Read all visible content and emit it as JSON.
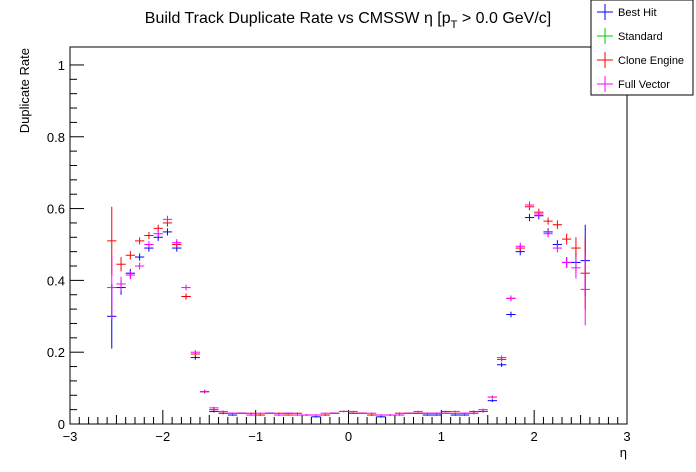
{
  "chart_data": {
    "type": "scatter",
    "title": "Build Track Duplicate Rate vs CMSSW η [p_T > 0.0 GeV/c]",
    "title_parts": {
      "main": "Build Track Duplicate Rate vs CMSSW η [p",
      "sub": "T",
      "tail": " > 0.0 GeV/c]"
    },
    "xlabel": "η",
    "ylabel": "Duplicate Rate",
    "xlim": [
      -3.0,
      3.0
    ],
    "ylim": [
      0.0,
      1.05
    ],
    "x_ticks": [
      -3,
      -2,
      -1,
      0,
      1,
      2,
      3
    ],
    "x_tick_labels": [
      "−3",
      "−2",
      "−1",
      "0",
      "1",
      "2",
      "3"
    ],
    "y_ticks": [
      0,
      0.2,
      0.4,
      0.6,
      0.8,
      1
    ],
    "y_tick_labels": [
      "0",
      "0.2",
      "0.4",
      "0.6",
      "0.8",
      "1"
    ],
    "grid": false,
    "legend_position": "top-right",
    "series": [
      {
        "name": "Best Hit",
        "color": "#0000ff",
        "x_half_width": 0.05,
        "points": [
          [
            -2.55,
            0.3,
            0.09
          ],
          [
            -2.45,
            0.38,
            0.02
          ],
          [
            -2.35,
            0.42,
            0.012
          ],
          [
            -2.25,
            0.465,
            0.01
          ],
          [
            -2.15,
            0.49,
            0.01
          ],
          [
            -2.05,
            0.52,
            0.01
          ],
          [
            -1.95,
            0.535,
            0.01
          ],
          [
            -1.85,
            0.49,
            0.01
          ],
          [
            -1.75,
            0.355,
            0.008
          ],
          [
            -1.65,
            0.185,
            0.006
          ],
          [
            -1.55,
            0.09,
            0.005
          ],
          [
            -1.45,
            0.035,
            0.003
          ],
          [
            -1.35,
            0.03,
            0.003
          ],
          [
            -1.25,
            0.025,
            0.002
          ],
          [
            -1.15,
            0.03,
            0.002
          ],
          [
            -1.05,
            0.025,
            0.002
          ],
          [
            -0.95,
            0.025,
            0.002
          ],
          [
            -0.85,
            0.03,
            0.002
          ],
          [
            -0.75,
            0.025,
            0.002
          ],
          [
            -0.65,
            0.03,
            0.002
          ],
          [
            -0.55,
            0.025,
            0.002
          ],
          [
            -0.45,
            0.025,
            0.002
          ],
          [
            -0.35,
            0.02,
            0.002
          ],
          [
            -0.25,
            0.025,
            0.002
          ],
          [
            -0.15,
            0.03,
            0.002
          ],
          [
            -0.05,
            0.035,
            0.002
          ],
          [
            0.05,
            0.03,
            0.002
          ],
          [
            0.15,
            0.03,
            0.002
          ],
          [
            0.25,
            0.025,
            0.002
          ],
          [
            0.35,
            0.02,
            0.002
          ],
          [
            0.45,
            0.025,
            0.002
          ],
          [
            0.55,
            0.025,
            0.002
          ],
          [
            0.65,
            0.03,
            0.002
          ],
          [
            0.75,
            0.03,
            0.002
          ],
          [
            0.85,
            0.025,
            0.002
          ],
          [
            0.95,
            0.025,
            0.002
          ],
          [
            1.05,
            0.03,
            0.002
          ],
          [
            1.15,
            0.025,
            0.002
          ],
          [
            1.25,
            0.025,
            0.002
          ],
          [
            1.35,
            0.03,
            0.003
          ],
          [
            1.45,
            0.035,
            0.003
          ],
          [
            1.55,
            0.065,
            0.004
          ],
          [
            1.65,
            0.165,
            0.006
          ],
          [
            1.75,
            0.305,
            0.008
          ],
          [
            1.85,
            0.48,
            0.01
          ],
          [
            1.95,
            0.575,
            0.01
          ],
          [
            2.05,
            0.58,
            0.01
          ],
          [
            2.15,
            0.535,
            0.01
          ],
          [
            2.25,
            0.5,
            0.012
          ],
          [
            2.35,
            0.45,
            0.015
          ],
          [
            2.45,
            0.45,
            0.03
          ],
          [
            2.55,
            0.455,
            0.1
          ]
        ]
      },
      {
        "name": "Standard",
        "color": "#00cc00",
        "x_half_width": 0.05,
        "points": []
      },
      {
        "name": "Clone Engine",
        "color": "#ff0000",
        "x_half_width": 0.05,
        "points": [
          [
            -2.55,
            0.51,
            0.095
          ],
          [
            -2.45,
            0.445,
            0.02
          ],
          [
            -2.35,
            0.47,
            0.012
          ],
          [
            -2.25,
            0.51,
            0.01
          ],
          [
            -2.15,
            0.525,
            0.01
          ],
          [
            -2.05,
            0.545,
            0.01
          ],
          [
            -1.95,
            0.56,
            0.01
          ],
          [
            -1.85,
            0.5,
            0.01
          ],
          [
            -1.75,
            0.355,
            0.008
          ],
          [
            -1.65,
            0.195,
            0.006
          ],
          [
            -1.55,
            0.09,
            0.005
          ],
          [
            -1.45,
            0.04,
            0.003
          ],
          [
            -1.35,
            0.03,
            0.003
          ],
          [
            -1.25,
            0.03,
            0.002
          ],
          [
            -1.15,
            0.03,
            0.002
          ],
          [
            -1.05,
            0.03,
            0.002
          ],
          [
            -0.95,
            0.025,
            0.002
          ],
          [
            -0.85,
            0.03,
            0.002
          ],
          [
            -0.75,
            0.03,
            0.002
          ],
          [
            -0.65,
            0.025,
            0.002
          ],
          [
            -0.55,
            0.03,
            0.002
          ],
          [
            -0.45,
            0.025,
            0.002
          ],
          [
            -0.35,
            0.025,
            0.002
          ],
          [
            -0.25,
            0.025,
            0.002
          ],
          [
            -0.15,
            0.03,
            0.002
          ],
          [
            -0.05,
            0.035,
            0.002
          ],
          [
            0.05,
            0.03,
            0.002
          ],
          [
            0.15,
            0.03,
            0.002
          ],
          [
            0.25,
            0.025,
            0.002
          ],
          [
            0.35,
            0.025,
            0.002
          ],
          [
            0.45,
            0.025,
            0.002
          ],
          [
            0.55,
            0.03,
            0.002
          ],
          [
            0.65,
            0.03,
            0.002
          ],
          [
            0.75,
            0.03,
            0.002
          ],
          [
            0.85,
            0.03,
            0.002
          ],
          [
            0.95,
            0.03,
            0.002
          ],
          [
            1.05,
            0.035,
            0.002
          ],
          [
            1.15,
            0.03,
            0.002
          ],
          [
            1.25,
            0.03,
            0.002
          ],
          [
            1.35,
            0.035,
            0.003
          ],
          [
            1.45,
            0.035,
            0.003
          ],
          [
            1.55,
            0.075,
            0.004
          ],
          [
            1.65,
            0.18,
            0.006
          ],
          [
            1.75,
            0.35,
            0.008
          ],
          [
            1.85,
            0.49,
            0.01
          ],
          [
            1.95,
            0.605,
            0.01
          ],
          [
            2.05,
            0.59,
            0.01
          ],
          [
            2.15,
            0.565,
            0.01
          ],
          [
            2.25,
            0.555,
            0.012
          ],
          [
            2.35,
            0.515,
            0.015
          ],
          [
            2.45,
            0.49,
            0.03
          ],
          [
            2.55,
            0.42,
            0.1
          ]
        ]
      },
      {
        "name": "Full Vector",
        "color": "#ff00ff",
        "x_half_width": 0.05,
        "points": [
          [
            -2.55,
            0.38,
            0.09
          ],
          [
            -2.45,
            0.39,
            0.02
          ],
          [
            -2.35,
            0.415,
            0.012
          ],
          [
            -2.25,
            0.44,
            0.01
          ],
          [
            -2.15,
            0.5,
            0.01
          ],
          [
            -2.05,
            0.53,
            0.01
          ],
          [
            -1.95,
            0.57,
            0.01
          ],
          [
            -1.85,
            0.505,
            0.01
          ],
          [
            -1.75,
            0.38,
            0.008
          ],
          [
            -1.65,
            0.2,
            0.006
          ],
          [
            -1.55,
            0.09,
            0.005
          ],
          [
            -1.45,
            0.045,
            0.003
          ],
          [
            -1.35,
            0.035,
            0.003
          ],
          [
            -1.25,
            0.03,
            0.002
          ],
          [
            -1.15,
            0.03,
            0.002
          ],
          [
            -1.05,
            0.025,
            0.002
          ],
          [
            -0.95,
            0.03,
            0.002
          ],
          [
            -0.85,
            0.03,
            0.002
          ],
          [
            -0.75,
            0.025,
            0.002
          ],
          [
            -0.65,
            0.03,
            0.002
          ],
          [
            -0.55,
            0.025,
            0.002
          ],
          [
            -0.45,
            0.025,
            0.002
          ],
          [
            -0.35,
            0.025,
            0.002
          ],
          [
            -0.25,
            0.03,
            0.002
          ],
          [
            -0.15,
            0.03,
            0.002
          ],
          [
            -0.05,
            0.035,
            0.002
          ],
          [
            0.05,
            0.035,
            0.002
          ],
          [
            0.15,
            0.03,
            0.002
          ],
          [
            0.25,
            0.03,
            0.002
          ],
          [
            0.35,
            0.025,
            0.002
          ],
          [
            0.45,
            0.025,
            0.002
          ],
          [
            0.55,
            0.025,
            0.002
          ],
          [
            0.65,
            0.03,
            0.002
          ],
          [
            0.75,
            0.035,
            0.002
          ],
          [
            0.85,
            0.03,
            0.002
          ],
          [
            0.95,
            0.03,
            0.002
          ],
          [
            1.05,
            0.03,
            0.002
          ],
          [
            1.15,
            0.035,
            0.002
          ],
          [
            1.25,
            0.03,
            0.002
          ],
          [
            1.35,
            0.03,
            0.003
          ],
          [
            1.45,
            0.04,
            0.003
          ],
          [
            1.55,
            0.075,
            0.004
          ],
          [
            1.65,
            0.185,
            0.006
          ],
          [
            1.75,
            0.35,
            0.008
          ],
          [
            1.85,
            0.495,
            0.01
          ],
          [
            1.95,
            0.61,
            0.01
          ],
          [
            2.05,
            0.585,
            0.01
          ],
          [
            2.15,
            0.53,
            0.01
          ],
          [
            2.25,
            0.49,
            0.012
          ],
          [
            2.35,
            0.45,
            0.015
          ],
          [
            2.45,
            0.435,
            0.03
          ],
          [
            2.55,
            0.375,
            0.1
          ]
        ]
      }
    ]
  }
}
